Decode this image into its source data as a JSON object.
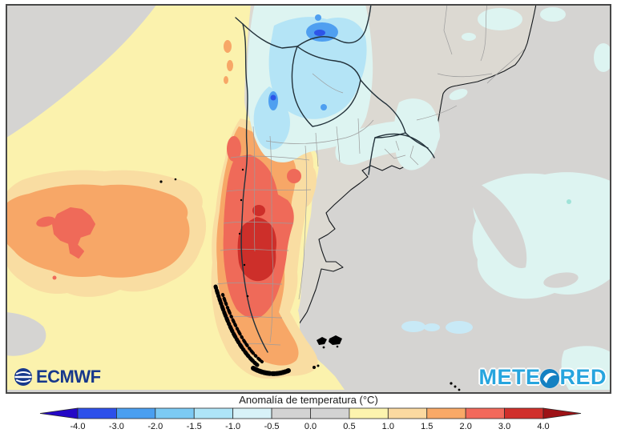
{
  "map": {
    "caption": "Anomalía de temperatura (°C)",
    "region": "southern-south-america"
  },
  "logos": {
    "ecmwf": {
      "text": "ECMWF",
      "color": "#17388c"
    },
    "meteored": {
      "left": "METE",
      "right": "RED",
      "color": "#27a5de",
      "o_color": "#1480c2"
    }
  },
  "colorbar": {
    "labels": [
      "-4.0",
      "-3.0",
      "-2.0",
      "-1.5",
      "-1.0",
      "-0.5",
      "0.0",
      "0.5",
      "1.0",
      "1.5",
      "2.0",
      "3.0",
      "4.0"
    ],
    "segment_colors": [
      "#2d50ea",
      "#4a9ff0",
      "#7ccaf4",
      "#aee5f8",
      "#d8f2f8",
      "#d3d3d3",
      "#d3d3d3",
      "#fdf4ae",
      "#fbd9a0",
      "#f9a967",
      "#f2695b",
      "#d02f2b"
    ],
    "arrow_left_color": "#2408c6",
    "arrow_right_color": "#9d1216",
    "outline_color": "#2b2b2b",
    "label_color": "#111111"
  },
  "map_colors": {
    "ocean": "#d5d4d2",
    "land": "#dcd9d2",
    "anomaly": {
      "p05": "#fbf2ad",
      "p10": "#f9dda2",
      "p15": "#f7a767",
      "p20": "#ef6a59",
      "p30": "#cd2f2a",
      "m05": "#ddf4f1",
      "m10": "#b4e4f6",
      "m15": "#8ccff4",
      "m20": "#4f9ff0",
      "m30": "#2d55e8",
      "spot": "#9fe3d8",
      "patch_blue": "#c8e9f6"
    },
    "border_country": "#22313a",
    "border_province": "#9c9c9c",
    "coast": "#14181c",
    "islands": "#000000",
    "frame": "#474747"
  }
}
